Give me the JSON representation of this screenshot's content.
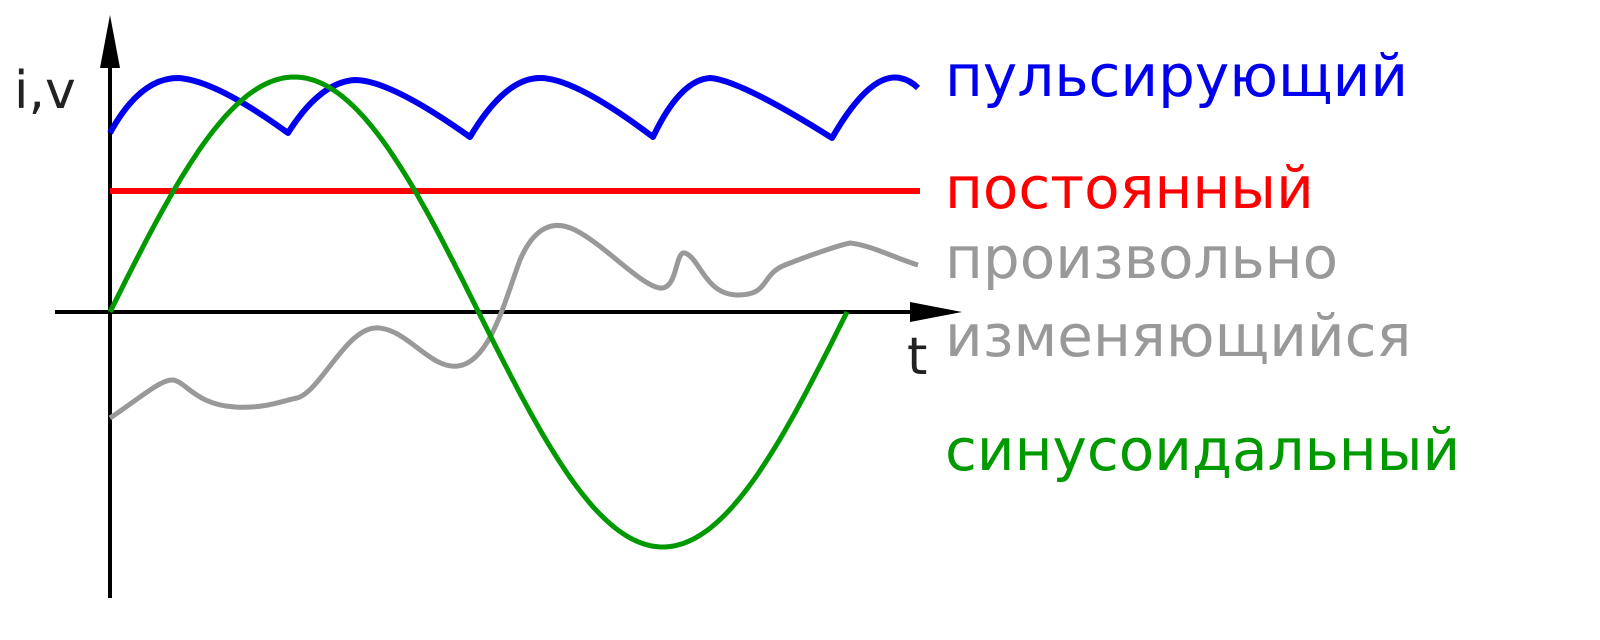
{
  "axes": {
    "y_label": "i,v",
    "x_label": "t"
  },
  "curves": {
    "pulsating": "пульсирующий",
    "constant": "постоянный",
    "arbitrary": [
      "произвольно",
      "изменяющийся"
    ],
    "sinusoidal": "синусоидальный"
  }
}
